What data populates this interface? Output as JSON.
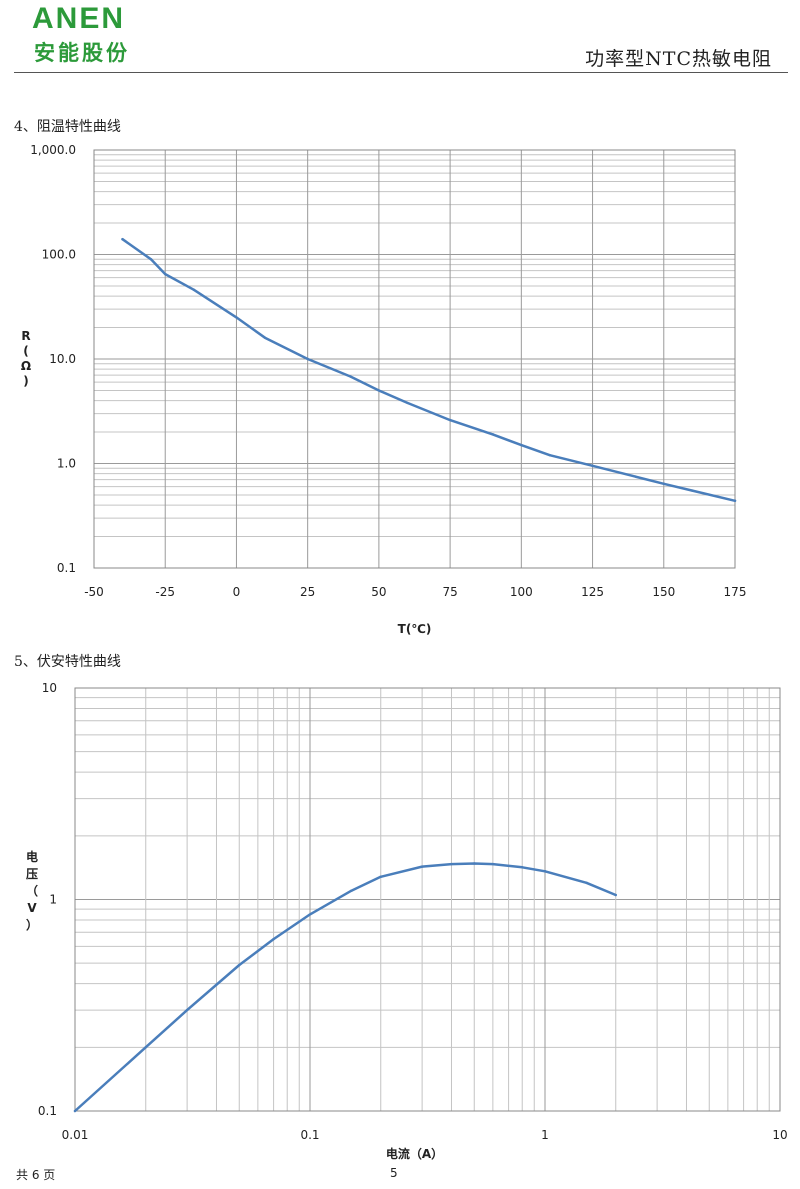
{
  "header": {
    "logo_latin": "ANEN",
    "logo_cn": "安能股份",
    "doc_title": "功率型NTC热敏电阻",
    "brand_color": "#2c9a3a"
  },
  "sections": {
    "rt_title": "4、阻温特性曲线",
    "iv_title": "5、伏安特性曲线"
  },
  "footer": {
    "total_pages": "共 6 页",
    "page_number": "5"
  },
  "chart_data": [
    {
      "type": "line",
      "title": "",
      "xlabel": "T(℃)",
      "ylabel": "R(Ω)",
      "xscale": "linear",
      "yscale": "log",
      "xlim": [
        -50,
        175
      ],
      "ylim": [
        0.1,
        1000
      ],
      "x_ticks": [
        -50,
        -25,
        0,
        25,
        50,
        75,
        100,
        125,
        150,
        175
      ],
      "x_tick_labels": [
        "-50",
        "-25",
        "0",
        "25",
        "50",
        "75",
        "100",
        "125",
        "150",
        "175"
      ],
      "y_ticks": [
        0.1,
        1,
        10,
        100,
        1000
      ],
      "y_tick_labels": [
        "0.1",
        "1.0",
        "10.0",
        "100.0",
        "1,000.0"
      ],
      "grid": true,
      "line_color": "#4a7ebb",
      "series": [
        {
          "x": [
            -40,
            -30,
            -25,
            -15,
            0,
            10,
            25,
            40,
            50,
            60,
            75,
            90,
            100,
            110,
            125,
            140,
            150,
            160,
            175
          ],
          "y": [
            140,
            90,
            65,
            46,
            25,
            16,
            10,
            6.8,
            5.0,
            3.8,
            2.6,
            1.9,
            1.5,
            1.2,
            0.95,
            0.75,
            0.64,
            0.55,
            0.44
          ]
        }
      ]
    },
    {
      "type": "line",
      "title": "",
      "xlabel": "电流（A）",
      "ylabel": "电压（V）",
      "xscale": "log",
      "yscale": "log",
      "xlim": [
        0.01,
        10
      ],
      "ylim": [
        0.1,
        10
      ],
      "x_ticks": [
        0.01,
        0.1,
        1,
        10
      ],
      "x_tick_labels": [
        "0.01",
        "0.1",
        "1",
        "10"
      ],
      "y_ticks": [
        0.1,
        1,
        10
      ],
      "y_tick_labels": [
        "0.1",
        "1",
        "10"
      ],
      "grid": true,
      "line_color": "#4a7ebb",
      "series": [
        {
          "x": [
            0.01,
            0.02,
            0.03,
            0.05,
            0.07,
            0.1,
            0.15,
            0.2,
            0.3,
            0.4,
            0.5,
            0.6,
            0.8,
            1.0,
            1.5,
            2.0
          ],
          "y": [
            0.1,
            0.2,
            0.3,
            0.49,
            0.65,
            0.85,
            1.1,
            1.28,
            1.43,
            1.47,
            1.48,
            1.47,
            1.42,
            1.36,
            1.2,
            1.05
          ]
        }
      ]
    }
  ]
}
